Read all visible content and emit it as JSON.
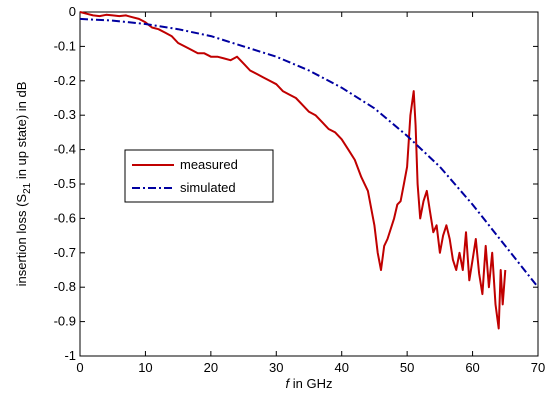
{
  "chart_data": {
    "type": "line",
    "title": "",
    "xlabel_italic": "f",
    "xlabel_rest": " in GHz",
    "ylabel_main": "insertion loss (S",
    "ylabel_sub": "21",
    "ylabel_rest": " in up state) in dB",
    "xlim": [
      0,
      70
    ],
    "ylim": [
      -1,
      0
    ],
    "xticks": [
      0,
      10,
      20,
      30,
      40,
      50,
      60,
      70
    ],
    "yticks": [
      0,
      -0.1,
      -0.2,
      -0.3,
      -0.4,
      -0.5,
      -0.6,
      -0.7,
      -0.8,
      -0.9,
      -1
    ],
    "ytick_labels": [
      "0",
      "-0.1",
      "-0.2",
      "-0.3",
      "-0.4",
      "-0.5",
      "-0.6",
      "-0.7",
      "-0.8",
      "-0.9",
      "-1"
    ],
    "grid": false,
    "legend_position": "center-left",
    "series": [
      {
        "name": "measured",
        "color": "#c00000",
        "style": "solid",
        "x": [
          0,
          1,
          2,
          3,
          4,
          5,
          6,
          7,
          8,
          9,
          10,
          11,
          12,
          13,
          14,
          15,
          16,
          17,
          18,
          19,
          20,
          21,
          22,
          23,
          24,
          25,
          26,
          27,
          28,
          29,
          30,
          31,
          32,
          33,
          34,
          35,
          36,
          37,
          38,
          39,
          40,
          41,
          42,
          43,
          44,
          45,
          45.5,
          46,
          46.5,
          47,
          48,
          48.5,
          49,
          49.5,
          50,
          50.5,
          51,
          51.3,
          51.6,
          52,
          52.5,
          53,
          53.5,
          54,
          54.5,
          55,
          55.5,
          56,
          56.5,
          57,
          57.5,
          58,
          58.5,
          59,
          59.5,
          60,
          60.5,
          61,
          61.5,
          62,
          62.5,
          63,
          63.5,
          64,
          64.3,
          64.6,
          65
        ],
        "y": [
          0,
          -0.005,
          -0.01,
          -0.012,
          -0.008,
          -0.01,
          -0.012,
          -0.01,
          -0.015,
          -0.02,
          -0.03,
          -0.045,
          -0.05,
          -0.06,
          -0.07,
          -0.09,
          -0.1,
          -0.11,
          -0.12,
          -0.12,
          -0.13,
          -0.13,
          -0.135,
          -0.14,
          -0.13,
          -0.15,
          -0.17,
          -0.18,
          -0.19,
          -0.2,
          -0.21,
          -0.23,
          -0.24,
          -0.25,
          -0.27,
          -0.29,
          -0.3,
          -0.32,
          -0.34,
          -0.35,
          -0.37,
          -0.4,
          -0.43,
          -0.48,
          -0.52,
          -0.62,
          -0.7,
          -0.75,
          -0.68,
          -0.66,
          -0.6,
          -0.56,
          -0.55,
          -0.5,
          -0.45,
          -0.3,
          -0.23,
          -0.33,
          -0.5,
          -0.6,
          -0.55,
          -0.52,
          -0.58,
          -0.64,
          -0.62,
          -0.7,
          -0.65,
          -0.62,
          -0.66,
          -0.72,
          -0.75,
          -0.7,
          -0.75,
          -0.64,
          -0.78,
          -0.72,
          -0.66,
          -0.76,
          -0.82,
          -0.68,
          -0.8,
          -0.7,
          -0.85,
          -0.92,
          -0.75,
          -0.85,
          -0.75
        ]
      },
      {
        "name": "simulated",
        "color": "#0000a0",
        "style": "dashdot",
        "x": [
          0,
          5,
          10,
          15,
          20,
          25,
          30,
          35,
          40,
          45,
          50,
          55,
          60,
          65,
          70
        ],
        "y": [
          -0.02,
          -0.025,
          -0.035,
          -0.05,
          -0.07,
          -0.1,
          -0.13,
          -0.17,
          -0.22,
          -0.28,
          -0.36,
          -0.45,
          -0.56,
          -0.68,
          -0.8
        ]
      }
    ]
  }
}
